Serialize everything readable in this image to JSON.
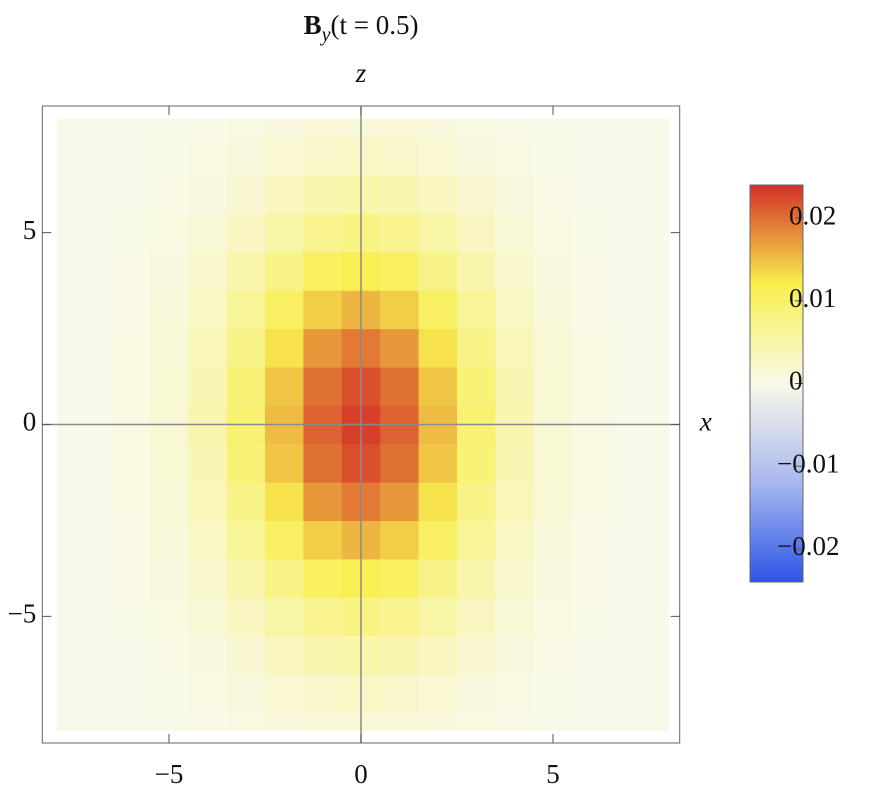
{
  "chart_data": {
    "type": "density",
    "title": {
      "main": "B",
      "sub": "y",
      "rest": "(t = 0.5)"
    },
    "x_label": "x",
    "y_label": "z",
    "x": [
      -8,
      -7,
      -6,
      -5,
      -4,
      -3,
      -2,
      -1,
      0,
      1,
      2,
      3,
      4,
      5,
      6,
      7,
      8
    ],
    "y": [
      -8,
      -7,
      -6,
      -5,
      -4,
      -3,
      -2,
      -1,
      0,
      1,
      2,
      3,
      4,
      5,
      6,
      7,
      8
    ],
    "values": [
      [
        0,
        0,
        0,
        0.0001,
        0.0003,
        0.0006,
        0.001,
        0.0013,
        0.0014,
        0.0013,
        0.001,
        0.0006,
        0.0003,
        0.0001,
        0,
        0,
        0
      ],
      [
        0,
        0,
        0.0001,
        0.0002,
        0.0005,
        0.0011,
        0.0018,
        0.0025,
        0.0028,
        0.0025,
        0.0018,
        0.0011,
        0.0005,
        0.0002,
        0.0001,
        0,
        0
      ],
      [
        0,
        0,
        0.0001,
        0.0004,
        0.0009,
        0.0019,
        0.0032,
        0.0044,
        0.0049,
        0.0044,
        0.0032,
        0.0019,
        0.0009,
        0.0004,
        0.0001,
        0,
        0
      ],
      [
        0,
        0,
        0.0002,
        0.0006,
        0.0015,
        0.0031,
        0.0052,
        0.007,
        0.0078,
        0.007,
        0.0052,
        0.0031,
        0.0015,
        0.0006,
        0.0002,
        0,
        0
      ],
      [
        0,
        0.0001,
        0.0003,
        0.0009,
        0.0022,
        0.0046,
        0.0076,
        0.0104,
        0.0115,
        0.0104,
        0.0076,
        0.0046,
        0.0022,
        0.0009,
        0.0003,
        0.0001,
        0
      ],
      [
        0,
        0.0001,
        0.0004,
        0.0012,
        0.003,
        0.0062,
        0.0103,
        0.0141,
        0.0156,
        0.0141,
        0.0103,
        0.0062,
        0.003,
        0.0012,
        0.0004,
        0.0001,
        0
      ],
      [
        0,
        0.0001,
        0.0005,
        0.0015,
        0.0037,
        0.0076,
        0.0128,
        0.0175,
        0.0193,
        0.0175,
        0.0128,
        0.0076,
        0.0037,
        0.0015,
        0.0005,
        0.0001,
        0
      ],
      [
        0,
        0.0001,
        0.0005,
        0.0017,
        0.0042,
        0.0087,
        0.0146,
        0.0199,
        0.022,
        0.0199,
        0.0146,
        0.0087,
        0.0042,
        0.0017,
        0.0005,
        0.0001,
        0
      ],
      [
        0,
        0.0001,
        0.0006,
        0.0017,
        0.0044,
        0.0091,
        0.0152,
        0.0208,
        0.023,
        0.0208,
        0.0152,
        0.0091,
        0.0044,
        0.0017,
        0.0006,
        0.0001,
        0
      ],
      [
        0,
        0.0001,
        0.0005,
        0.0017,
        0.0042,
        0.0087,
        0.0146,
        0.0199,
        0.022,
        0.0199,
        0.0146,
        0.0087,
        0.0042,
        0.0017,
        0.0005,
        0.0001,
        0
      ],
      [
        0,
        0.0001,
        0.0005,
        0.0015,
        0.0037,
        0.0076,
        0.0128,
        0.0175,
        0.0193,
        0.0175,
        0.0128,
        0.0076,
        0.0037,
        0.0015,
        0.0005,
        0.0001,
        0
      ],
      [
        0,
        0.0001,
        0.0004,
        0.0012,
        0.003,
        0.0062,
        0.0103,
        0.0141,
        0.0156,
        0.0141,
        0.0103,
        0.0062,
        0.003,
        0.0012,
        0.0004,
        0.0001,
        0
      ],
      [
        0,
        0.0001,
        0.0003,
        0.0009,
        0.0022,
        0.0046,
        0.0076,
        0.0104,
        0.0115,
        0.0104,
        0.0076,
        0.0046,
        0.0022,
        0.0009,
        0.0003,
        0.0001,
        0
      ],
      [
        0,
        0,
        0.0002,
        0.0006,
        0.0015,
        0.0031,
        0.0052,
        0.007,
        0.0078,
        0.007,
        0.0052,
        0.0031,
        0.0015,
        0.0006,
        0.0002,
        0,
        0
      ],
      [
        0,
        0,
        0.0001,
        0.0004,
        0.0009,
        0.0019,
        0.0032,
        0.0044,
        0.0049,
        0.0044,
        0.0032,
        0.0019,
        0.0009,
        0.0004,
        0.0001,
        0,
        0
      ],
      [
        0,
        0,
        0.0001,
        0.0002,
        0.0005,
        0.0011,
        0.0018,
        0.0025,
        0.0028,
        0.0025,
        0.0018,
        0.0011,
        0.0005,
        0.0002,
        0.0001,
        0,
        0
      ],
      [
        0,
        0,
        0,
        0.0001,
        0.0003,
        0.0006,
        0.001,
        0.0013,
        0.0014,
        0.0013,
        0.001,
        0.0006,
        0.0003,
        0.0001,
        0,
        0,
        0
      ]
    ],
    "xlim": [
      -8.3,
      8.3
    ],
    "ylim": [
      -8.3,
      8.3
    ],
    "xticks": [
      {
        "value": -5,
        "label": "−5"
      },
      0,
      5
    ],
    "yticks": [
      {
        "value": -5,
        "label": "−5"
      },
      0,
      5
    ],
    "clim": [
      -0.024,
      0.024
    ],
    "cticks": [
      {
        "value": -0.02,
        "label": "−0.02"
      },
      {
        "value": -0.01,
        "label": "−0.01"
      },
      0,
      0.01,
      0.02
    ],
    "colormap": [
      "#2b55e6",
      "#a8b8ee",
      "#f9f9ea",
      "#f8ef4c",
      "#d42f28"
    ]
  }
}
